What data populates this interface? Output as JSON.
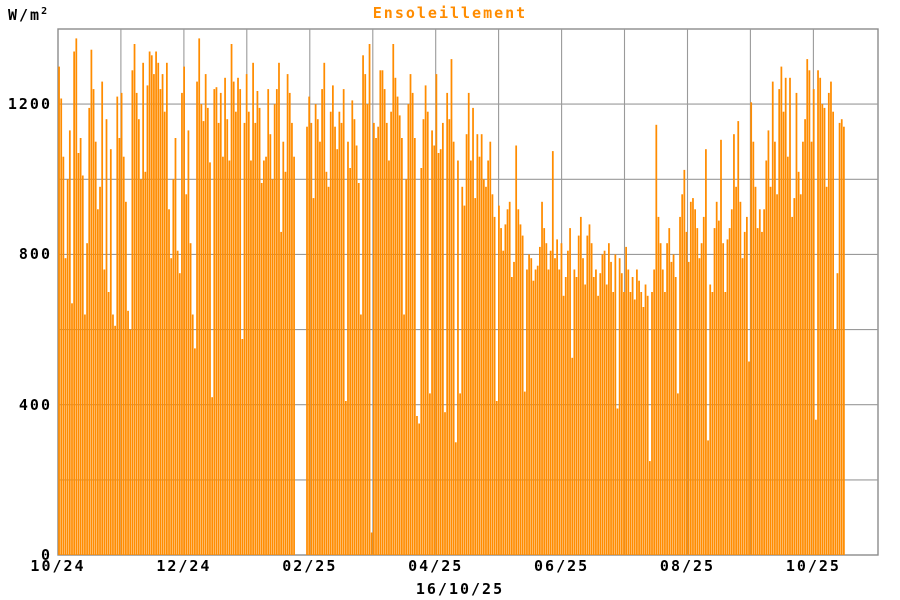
{
  "title": "Ensoleillement",
  "y_axis": {
    "unit_base": "W/m",
    "unit_exponent": "2",
    "tick_labels": [
      "0",
      "400",
      "800",
      "1200"
    ],
    "tick_values": [
      0,
      400,
      800,
      1200
    ]
  },
  "x_axis": {
    "tick_labels": [
      "10/24",
      "12/24",
      "02/25",
      "04/25",
      "06/25",
      "08/25",
      "10/25"
    ],
    "sublabel": "16/10/25"
  },
  "colors": {
    "bar": "#FF8C00",
    "title": "#FF8C00",
    "grid": "#9A9A9A",
    "border": "#8C8C8C",
    "label": "#000000",
    "background": "#FFFFFF"
  },
  "chart_data": {
    "type": "bar",
    "title": "Ensoleillement",
    "ylabel": "W/m2",
    "xlabel": "16/10/25",
    "ylim": [
      0,
      1400
    ],
    "y_gridline_step": 200,
    "y_tick_values": [
      0,
      400,
      800,
      1200
    ],
    "x_tick_labels": [
      "10/24",
      "12/24",
      "02/25",
      "04/25",
      "06/25",
      "08/25",
      "10/25"
    ],
    "x_monthly_gridlines": 12,
    "x_label_every_n_months": 2,
    "x_range": "daily values from 10/24 to 16/10/25",
    "legend": "none",
    "grid": true,
    "missing_data": "approx. 5 consecutive days without bars in late January 2025 (white gap)",
    "values": [
      1300,
      1215,
      1060,
      790,
      1000,
      1130,
      670,
      1340,
      1375,
      1070,
      1110,
      1010,
      640,
      830,
      1190,
      1345,
      1240,
      1100,
      920,
      980,
      1260,
      760,
      1160,
      700,
      1080,
      640,
      610,
      1220,
      1110,
      1230,
      1060,
      940,
      650,
      600,
      1290,
      1360,
      1230,
      1160,
      1000,
      1310,
      1020,
      1250,
      1340,
      1330,
      1280,
      1340,
      1310,
      1240,
      1280,
      1180,
      1310,
      920,
      790,
      1000,
      1110,
      810,
      750,
      1230,
      1300,
      960,
      1130,
      830,
      640,
      550,
      1260,
      1375,
      1200,
      1155,
      1280,
      1190,
      1045,
      420,
      1240,
      1245,
      1150,
      1230,
      1060,
      1270,
      1160,
      1050,
      1360,
      1260,
      1180,
      1270,
      1240,
      575,
      1150,
      1280,
      1180,
      1050,
      1310,
      1150,
      1235,
      1190,
      990,
      1050,
      1060,
      1240,
      1120,
      1000,
      1200,
      1240,
      1310,
      860,
      1100,
      1020,
      1280,
      1230,
      1150,
      1060,
      0,
      0,
      0,
      0,
      0,
      1140,
      1220,
      1150,
      950,
      1200,
      1160,
      1100,
      1240,
      1310,
      1020,
      980,
      1180,
      1250,
      1140,
      1080,
      1180,
      1150,
      1240,
      410,
      1100,
      1030,
      1210,
      1160,
      1090,
      990,
      640,
      1330,
      1280,
      1200,
      1360,
      60,
      1150,
      1110,
      1140,
      1290,
      1290,
      1240,
      1150,
      1050,
      1180,
      1360,
      1270,
      1220,
      1170,
      1110,
      640,
      1000,
      1200,
      1280,
      1230,
      1110,
      370,
      350,
      1030,
      1160,
      1250,
      1180,
      430,
      1130,
      1090,
      1280,
      1070,
      1080,
      1150,
      380,
      1230,
      1160,
      1320,
      1100,
      300,
      1050,
      430,
      980,
      930,
      1120,
      1230,
      1050,
      1190,
      950,
      1120,
      1060,
      1120,
      1000,
      980,
      1050,
      1100,
      960,
      900,
      410,
      930,
      870,
      810,
      880,
      920,
      940,
      740,
      780,
      1090,
      920,
      880,
      850,
      435,
      760,
      800,
      790,
      730,
      760,
      770,
      820,
      940,
      870,
      830,
      760,
      810,
      1075,
      790,
      840,
      760,
      830,
      690,
      740,
      810,
      870,
      525,
      760,
      740,
      850,
      900,
      790,
      720,
      850,
      880,
      830,
      740,
      760,
      690,
      750,
      800,
      810,
      720,
      830,
      780,
      700,
      800,
      390,
      790,
      750,
      700,
      820,
      760,
      700,
      740,
      680,
      760,
      730,
      700,
      660,
      720,
      690,
      250,
      700,
      760,
      1145,
      900,
      830,
      760,
      700,
      830,
      870,
      780,
      800,
      740,
      430,
      900,
      960,
      1025,
      860,
      780,
      940,
      950,
      920,
      870,
      790,
      830,
      900,
      1080,
      305,
      720,
      700,
      870,
      940,
      890,
      1105,
      830,
      700,
      840,
      870,
      920,
      1120,
      980,
      1155,
      940,
      790,
      860,
      900,
      515,
      1205,
      1100,
      980,
      870,
      920,
      860,
      920,
      1050,
      1130,
      980,
      1260,
      1100,
      960,
      1240,
      1300,
      1180,
      1270,
      1060,
      1270,
      900,
      950,
      1230,
      1020,
      960,
      1100,
      1160,
      1320,
      1290,
      1100,
      1240,
      360,
      1290,
      1270,
      1200,
      1190,
      980,
      1230,
      1260,
      1180,
      600,
      750,
      1150,
      1160,
      1140
    ]
  }
}
